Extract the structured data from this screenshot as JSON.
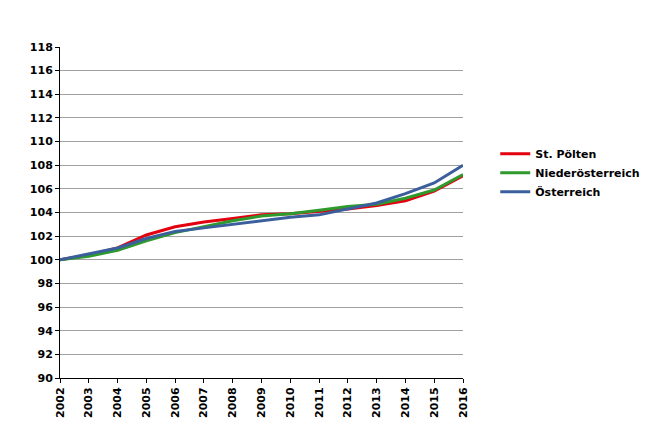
{
  "chart_data": {
    "type": "line",
    "x": [
      2002,
      2003,
      2004,
      2005,
      2006,
      2007,
      2008,
      2009,
      2010,
      2011,
      2012,
      2013,
      2014,
      2015,
      2016
    ],
    "series": [
      {
        "name": "St. Pölten",
        "color": "#e3000f",
        "values": [
          100,
          100.4,
          101.0,
          102.1,
          102.8,
          103.2,
          103.5,
          103.8,
          103.9,
          104.1,
          104.3,
          104.6,
          105.0,
          105.8,
          107.1
        ]
      },
      {
        "name": "Niederösterreich",
        "color": "#2e9a2e",
        "values": [
          100,
          100.3,
          100.8,
          101.6,
          102.3,
          102.8,
          103.3,
          103.7,
          103.9,
          104.2,
          104.5,
          104.7,
          105.2,
          105.9,
          107.2
        ]
      },
      {
        "name": "Österreich",
        "color": "#3b5f9c",
        "values": [
          100,
          100.5,
          101.0,
          101.8,
          102.4,
          102.7,
          103.0,
          103.3,
          103.6,
          103.8,
          104.3,
          104.8,
          105.6,
          106.5,
          108.0
        ]
      }
    ],
    "xlim": [
      2002,
      2016
    ],
    "xticks": [
      2002,
      2003,
      2004,
      2005,
      2006,
      2007,
      2008,
      2009,
      2010,
      2011,
      2012,
      2013,
      2014,
      2015,
      2016
    ],
    "ylim": [
      90,
      118
    ],
    "yticks": [
      90,
      92,
      94,
      96,
      98,
      100,
      102,
      104,
      106,
      108,
      110,
      112,
      114,
      116,
      118
    ],
    "grid": true,
    "legend": "right"
  }
}
